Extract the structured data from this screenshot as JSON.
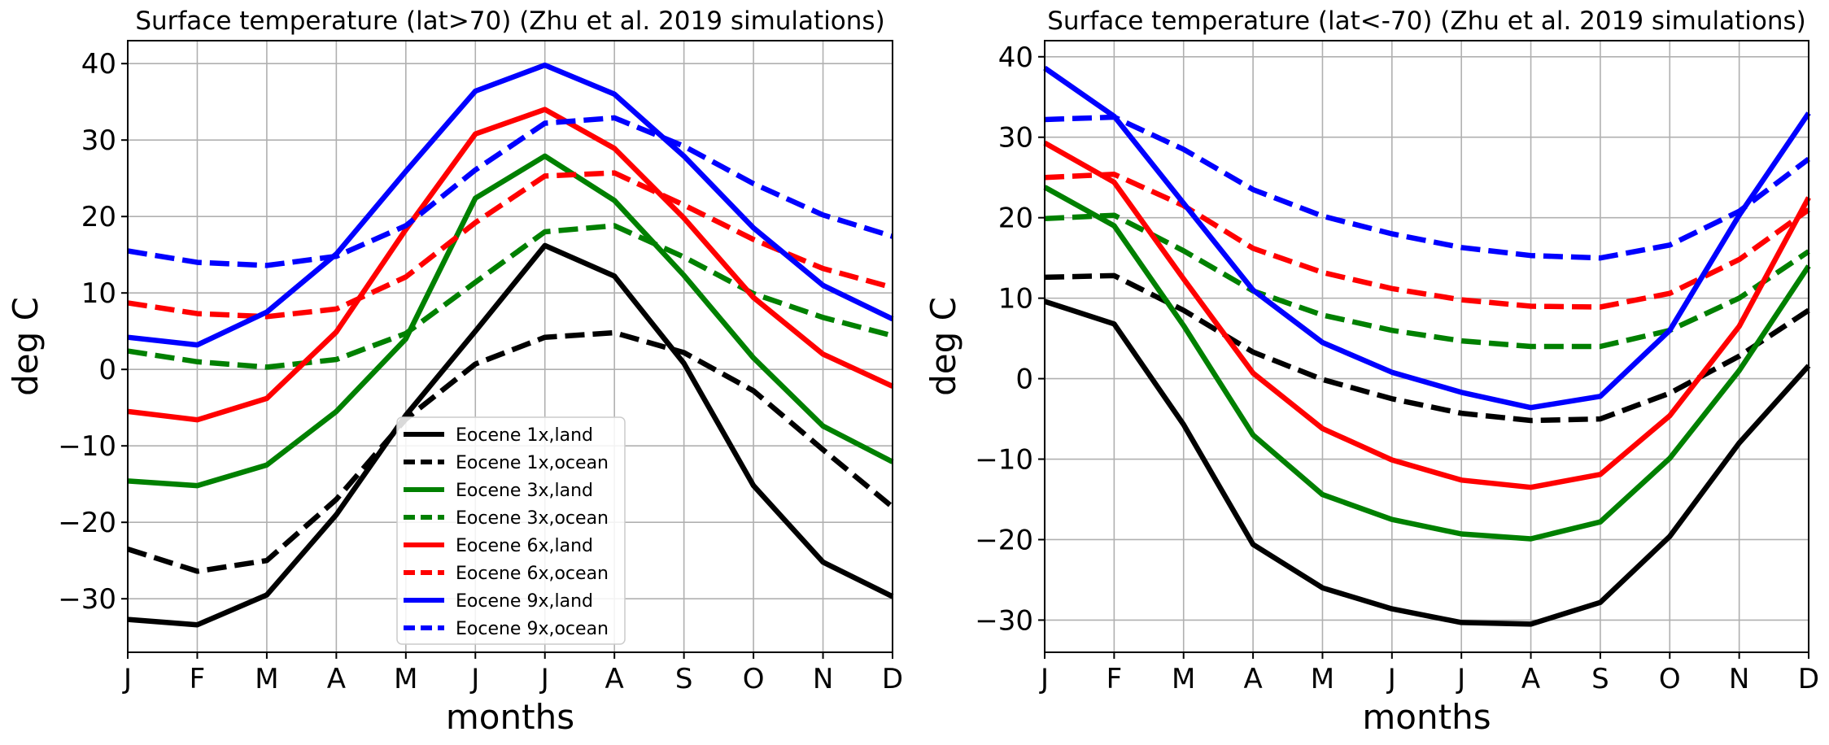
{
  "chart_data": [
    {
      "type": "line",
      "title": "Surface temperature (lat>70) (Zhu et al. 2019 simulations)",
      "xlabel": "months",
      "ylabel": "deg C",
      "categories": [
        "J",
        "F",
        "M",
        "A",
        "M",
        "J",
        "J",
        "A",
        "S",
        "O",
        "N",
        "D"
      ],
      "ylim": [
        -37,
        43
      ],
      "yticks": [
        -30,
        -20,
        -10,
        0,
        10,
        20,
        30,
        40
      ],
      "grid": true,
      "legend": "center",
      "series": [
        {
          "name": "Eocene 1x,land",
          "color": "#000000",
          "dash": "solid",
          "values": [
            -32.7,
            -33.4,
            -29.5,
            -19.0,
            -6.0,
            5.0,
            16.2,
            12.2,
            0.8,
            -15.2,
            -25.2,
            -29.7
          ]
        },
        {
          "name": "Eocene 1x,ocean",
          "color": "#000000",
          "dash": "dashed",
          "values": [
            -23.5,
            -26.4,
            -25.0,
            -17.0,
            -6.5,
            0.7,
            4.2,
            4.8,
            2.2,
            -2.8,
            -10.5,
            -18.0
          ]
        },
        {
          "name": "Eocene 3x,land",
          "color": "#008000",
          "dash": "solid",
          "values": [
            -14.6,
            -15.2,
            -12.5,
            -5.5,
            4.0,
            22.4,
            27.9,
            22.1,
            12.3,
            1.5,
            -7.4,
            -12.1
          ]
        },
        {
          "name": "Eocene 3x,ocean",
          "color": "#008000",
          "dash": "dashed",
          "values": [
            2.4,
            1.0,
            0.3,
            1.3,
            4.7,
            11.4,
            18.0,
            18.8,
            14.7,
            9.9,
            6.8,
            4.4
          ]
        },
        {
          "name": "Eocene 6x,land",
          "color": "#ff0000",
          "dash": "solid",
          "values": [
            -5.5,
            -6.6,
            -3.8,
            4.9,
            18.3,
            30.8,
            34.0,
            28.9,
            19.8,
            9.4,
            2.0,
            -2.2
          ]
        },
        {
          "name": "Eocene 6x,ocean",
          "color": "#ff0000",
          "dash": "dashed",
          "values": [
            8.7,
            7.3,
            6.9,
            7.9,
            12.1,
            19.2,
            25.3,
            25.7,
            21.5,
            17.0,
            13.2,
            10.7
          ]
        },
        {
          "name": "Eocene 9x,land",
          "color": "#0000ff",
          "dash": "solid",
          "values": [
            4.2,
            3.2,
            7.5,
            15.1,
            25.9,
            36.4,
            39.8,
            36.0,
            27.9,
            18.5,
            11.0,
            6.6
          ]
        },
        {
          "name": "Eocene 9x,ocean",
          "color": "#0000ff",
          "dash": "dashed",
          "values": [
            15.5,
            14.0,
            13.6,
            14.8,
            18.8,
            26.1,
            32.2,
            32.9,
            29.2,
            24.3,
            20.2,
            17.4
          ]
        }
      ]
    },
    {
      "type": "line",
      "title": "Surface temperature (lat<-70) (Zhu et al. 2019 simulations)",
      "xlabel": "months",
      "ylabel": "deg C",
      "categories": [
        "J",
        "F",
        "M",
        "A",
        "M",
        "J",
        "J",
        "A",
        "S",
        "O",
        "N",
        "D"
      ],
      "ylim": [
        -34,
        42
      ],
      "yticks": [
        -30,
        -20,
        -10,
        0,
        10,
        20,
        30,
        40
      ],
      "grid": true,
      "series": [
        {
          "name": "Eocene 1x,land",
          "color": "#000000",
          "dash": "solid",
          "values": [
            9.6,
            6.8,
            -5.7,
            -20.6,
            -26.0,
            -28.6,
            -30.3,
            -30.5,
            -27.8,
            -19.6,
            -8.0,
            1.6
          ]
        },
        {
          "name": "Eocene 1x,ocean",
          "color": "#000000",
          "dash": "dashed",
          "values": [
            12.6,
            12.8,
            8.5,
            3.3,
            -0.1,
            -2.5,
            -4.3,
            -5.2,
            -5.0,
            -1.8,
            2.8,
            8.5
          ]
        },
        {
          "name": "Eocene 3x,land",
          "color": "#008000",
          "dash": "solid",
          "values": [
            23.8,
            19.0,
            6.6,
            -7.0,
            -14.4,
            -17.5,
            -19.3,
            -19.9,
            -17.8,
            -9.9,
            1.0,
            14.0
          ]
        },
        {
          "name": "Eocene 3x,ocean",
          "color": "#008000",
          "dash": "dashed",
          "values": [
            19.9,
            20.3,
            15.9,
            10.9,
            7.9,
            6.0,
            4.7,
            4.0,
            4.0,
            6.0,
            10.0,
            15.8
          ]
        },
        {
          "name": "Eocene 6x,land",
          "color": "#ff0000",
          "dash": "solid",
          "values": [
            29.3,
            24.4,
            12.4,
            0.7,
            -6.2,
            -10.1,
            -12.6,
            -13.5,
            -11.9,
            -4.6,
            6.5,
            22.5
          ]
        },
        {
          "name": "Eocene 6x,ocean",
          "color": "#ff0000",
          "dash": "dashed",
          "values": [
            25.0,
            25.4,
            21.5,
            16.2,
            13.2,
            11.2,
            9.8,
            9.0,
            8.9,
            10.6,
            14.8,
            21.0
          ]
        },
        {
          "name": "Eocene 9x,land",
          "color": "#0000ff",
          "dash": "solid",
          "values": [
            38.6,
            32.6,
            21.8,
            11.0,
            4.5,
            0.8,
            -1.7,
            -3.6,
            -2.2,
            6.0,
            20.3,
            33.0
          ]
        },
        {
          "name": "Eocene 9x,ocean",
          "color": "#0000ff",
          "dash": "dashed",
          "values": [
            32.2,
            32.5,
            28.5,
            23.5,
            20.2,
            18.0,
            16.3,
            15.3,
            15.0,
            16.6,
            20.8,
            27.3
          ]
        }
      ]
    }
  ]
}
